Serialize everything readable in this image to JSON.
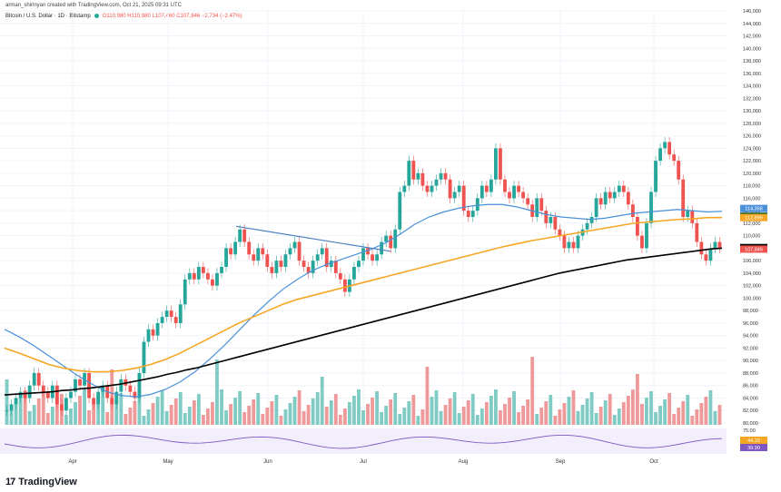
{
  "header": {
    "credit": "arman_shirinyan created with TradingView.com, Oct 21, 2025 09:31 UTC",
    "symbol": "Bitcoin / U.S. Dollar · 1D · Bitstamp",
    "ohlc": "O110,980 H110,980 L107,460 C107,846 −2,734 (−2.47%)"
  },
  "branding": {
    "logo_mark": "17",
    "logo_text": "TradingView"
  },
  "colors": {
    "up": "#26a69a",
    "down": "#ef5350",
    "ma_orange": "#f5a623",
    "ma_blue": "#4a90d9",
    "ma_black": "#000000",
    "ma_green": "#a5c9a0",
    "trendline": "#4a7fc1",
    "rsi": "#7e57c2"
  },
  "chart_data": {
    "type": "line",
    "title": "Bitcoin / U.S. Dollar · 1D · Bitstamp",
    "y_ticks": [
      "146,000",
      "144,000",
      "142,000",
      "140,000",
      "138,000",
      "136,000",
      "134,000",
      "132,000",
      "130,000",
      "128,000",
      "126,000",
      "124,000",
      "122,000",
      "120,000",
      "118,000",
      "116,000",
      "114,000",
      "112,000",
      "110,000",
      "108,000",
      "106,000",
      "104,000",
      "102,000",
      "100,000",
      "98,000",
      "96,000",
      "94,000",
      "92,000",
      "90,000",
      "88,000",
      "86,000",
      "84,000",
      "82,000",
      "80,000"
    ],
    "ylim": [
      80000,
      146000
    ],
    "x_ticks": [
      "Apr",
      "May",
      "Jun",
      "Jul",
      "Aug",
      "Sep",
      "Oct"
    ],
    "price_close": [
      82,
      83,
      84,
      85,
      84,
      86,
      88,
      86,
      85,
      84,
      86,
      83,
      82,
      84,
      85,
      87,
      86,
      88,
      84,
      83,
      85,
      86,
      84,
      83,
      85,
      87,
      86,
      85,
      84,
      88,
      93,
      95,
      94,
      96,
      97,
      98,
      97,
      96,
      99,
      103,
      104,
      103,
      105,
      104,
      103,
      102,
      104,
      105,
      108,
      107,
      109,
      111,
      109,
      107,
      106,
      108,
      107,
      105,
      104,
      106,
      105,
      107,
      108,
      109,
      106,
      105,
      104,
      106,
      107,
      108,
      105,
      106,
      104,
      103,
      101,
      103,
      105,
      106,
      108,
      107,
      106,
      107,
      109,
      110,
      108,
      111,
      117,
      118,
      122,
      119,
      120,
      118,
      117,
      118,
      119,
      120,
      119,
      116,
      117,
      118,
      114,
      113,
      114,
      116,
      118,
      117,
      119,
      124,
      119,
      117,
      116,
      118,
      117,
      116,
      115,
      113,
      116,
      114,
      112,
      113,
      111,
      110,
      108,
      109,
      108,
      110,
      111,
      112,
      113,
      116,
      115,
      117,
      116,
      117,
      118,
      117,
      115,
      113,
      110,
      108,
      112,
      117,
      122,
      124,
      125,
      123,
      122,
      119,
      113,
      114,
      112,
      109,
      107,
      106,
      108,
      109,
      108
    ],
    "ma_black": [
      84.5,
      84.6,
      84.7,
      84.8,
      84.9,
      85.0,
      85.2,
      85.3,
      85.5,
      85.6,
      85.8,
      86.0,
      86.2,
      86.5,
      86.8,
      87.1,
      87.4,
      87.8,
      88.1,
      88.5,
      88.8,
      89.2,
      89.6,
      90.0,
      90.4,
      90.8,
      91.2,
      91.6,
      92.0,
      92.4,
      92.8,
      93.2,
      93.6,
      94.0,
      94.4,
      94.8,
      95.2,
      95.6,
      96.0,
      96.4,
      96.8,
      97.2,
      97.6,
      98.0,
      98.4,
      98.8,
      99.2,
      99.6,
      100.0,
      100.4,
      100.8,
      101.2,
      101.6,
      102.0,
      102.4,
      102.8,
      103.2,
      103.6,
      104.0,
      104.3,
      104.6,
      104.9,
      105.2,
      105.5,
      105.8,
      106.1,
      106.3,
      106.5,
      106.7,
      106.9,
      107.1,
      107.3,
      107.5,
      107.7,
      107.9,
      108.0
    ],
    "ma_orange": [
      92,
      91.2,
      90.3,
      89.4,
      88.8,
      88.4,
      88.2,
      88.2,
      88.4,
      88.8,
      89.4,
      90.2,
      91.2,
      92.4,
      93.6,
      94.8,
      96,
      97,
      98,
      99,
      99.8,
      100.4,
      101,
      101.6,
      102.2,
      102.8,
      103.4,
      104,
      104.6,
      105.2,
      105.8,
      106.4,
      107,
      107.6,
      108.2,
      108.7,
      109.2,
      109.6,
      110,
      110.4,
      110.8,
      111.2,
      111.6,
      112,
      112.2,
      112.4,
      112.6,
      112.7,
      112.9,
      112.9
    ],
    "ma_blue": [
      95,
      93.8,
      92.4,
      90.8,
      89.2,
      87.6,
      86.2,
      85.0,
      84.4,
      84.2,
      84.6,
      85.4,
      86.6,
      88.2,
      90.2,
      92.4,
      94.8,
      97.2,
      99.4,
      101.4,
      103.0,
      104.4,
      105.4,
      106.2,
      107.0,
      107.8,
      108.8,
      110.2,
      111.8,
      113.0,
      113.8,
      114.4,
      114.8,
      115.0,
      115.0,
      114.6,
      114.0,
      113.4,
      113.0,
      112.8,
      112.6,
      112.8,
      113.2,
      113.6,
      113.8,
      114.0,
      114.2,
      114.0,
      113.8,
      113.9
    ],
    "annotations": {
      "last_price": "107,846",
      "last_time": "14:28:51",
      "ma_labels": [
        "114,358",
        "113,112",
        "112,899",
        "108,097"
      ]
    },
    "rsi": {
      "ticks": [
        "75.00",
        "25.00"
      ],
      "values": [
        "44.16",
        "39.90"
      ]
    },
    "volume_label": "5.27K",
    "gridlines": true
  }
}
